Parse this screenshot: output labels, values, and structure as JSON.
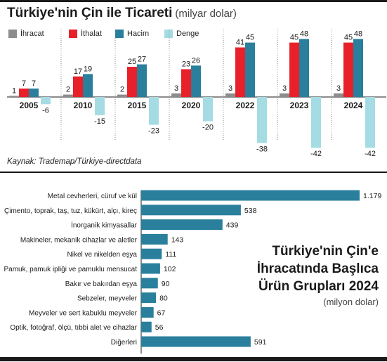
{
  "header": {
    "title": "Türkiye'nin Çin ile Ticareti",
    "unit": "(milyar dolar)"
  },
  "source": "Kaynak: Trademap/Türkiye-directdata",
  "colors": {
    "ihracat": "#8c8c8c",
    "ithalat": "#e8202a",
    "hacim": "#2a7f9c",
    "denge": "#a5dbe3",
    "hbar": "#2a7f9c",
    "rule": "#1a1a1a"
  },
  "chart_data": [
    {
      "type": "bar",
      "title": "Türkiye'nin Çin ile Ticareti",
      "unit": "(milyar dolar)",
      "categories": [
        "2005",
        "2010",
        "2015",
        "2020",
        "2022",
        "2023",
        "2024"
      ],
      "series": [
        {
          "name": "İhracat",
          "values": [
            1,
            2,
            2,
            3,
            3,
            3,
            3
          ]
        },
        {
          "name": "İthalat",
          "values": [
            7,
            17,
            25,
            23,
            41,
            45,
            45
          ]
        },
        {
          "name": "Hacim",
          "values": [
            7,
            19,
            27,
            26,
            45,
            48,
            48
          ]
        },
        {
          "name": "Denge",
          "values": [
            -6,
            -15,
            -23,
            -20,
            -38,
            -42,
            -42
          ]
        }
      ],
      "legend": "top-left",
      "grid": false
    },
    {
      "type": "bar",
      "orientation": "horizontal",
      "title": "Türkiye'nin Çin'e İhracatında Başlıca Ürün Grupları 2024",
      "unit": "(milyon dolar)",
      "categories": [
        "Metal cevherleri, cüruf ve kül",
        "Çimento, toprak, taş, tuz, kükürt, alçı, kireç",
        "İnorganik kimyasallar",
        "Makineler, mekanik cihazlar ve aletler",
        "Nikel ve nikelden eşya",
        "Pamuk, pamuk ipliği ve pamuklu mensucat",
        "Bakır ve bakırdan eşya",
        "Sebzeler, meyveler",
        "Meyveler ve sert kabuklu meyveler",
        "Optik, fotoğraf, ölçü, tıbbi alet ve cihazlar",
        "Diğerleri"
      ],
      "values": [
        1179,
        538,
        439,
        143,
        111,
        102,
        90,
        80,
        67,
        56,
        591
      ],
      "value_labels": [
        "1.179",
        "538",
        "439",
        "143",
        "111",
        "102",
        "90",
        "80",
        "67",
        "56",
        "591"
      ],
      "grid": false
    }
  ],
  "title2": {
    "lines": [
      "Türkiye'nin Çin'e",
      "İhracatında Başlıca",
      "Ürün Grupları 2024"
    ],
    "unit": "(milyon dolar)"
  }
}
